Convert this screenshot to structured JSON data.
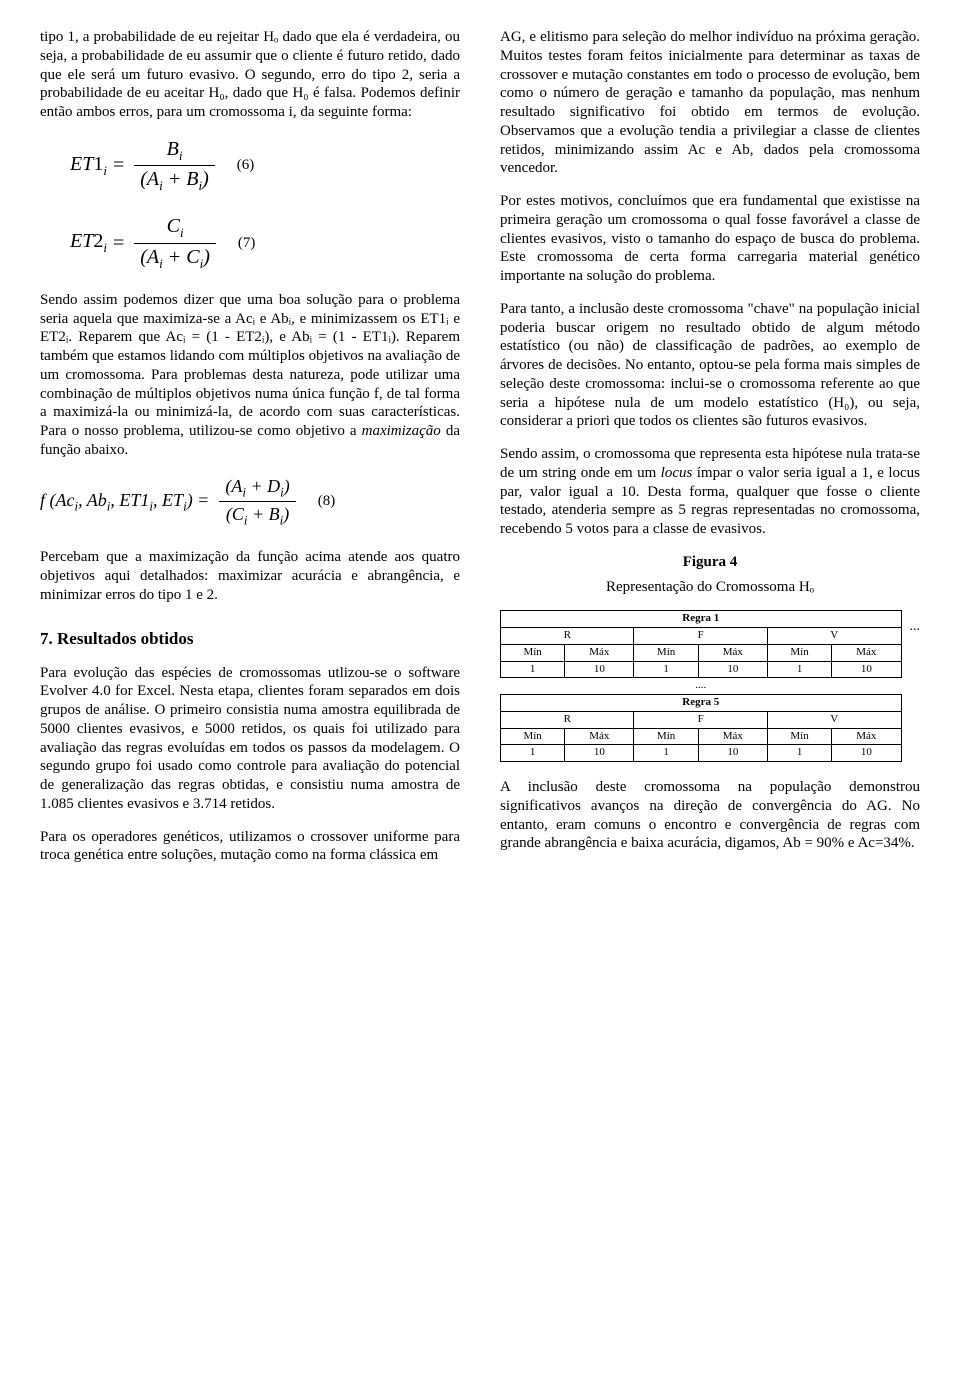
{
  "left": {
    "p1": "tipo 1, a probabilidade de eu rejeitar Hₒ dado que ela é verdadeira, ou seja, a probabilidade de eu assumir que o cliente é futuro retido, dado que ele será um futuro evasivo. O segundo, erro do tipo 2, seria a probabilidade de eu aceitar H₀, dado que H₀ é falsa. Podemos definir então ambos erros, para um cromossoma i, da seguinte forma:",
    "eq6": {
      "lhs_sym": "ET",
      "lhs_num": "1",
      "lhs_sub": "i",
      "num_sym": "B",
      "num_sub": "i",
      "den_a_sym": "A",
      "den_a_sub": "i",
      "den_b_sym": "B",
      "den_b_sub": "i",
      "label": "(6)"
    },
    "eq7": {
      "lhs_sym": "ET",
      "lhs_num": "2",
      "lhs_sub": "i",
      "num_sym": "C",
      "num_sub": "i",
      "den_a_sym": "A",
      "den_a_sub": "i",
      "den_b_sym": "C",
      "den_b_sub": "i",
      "label": "(7)"
    },
    "p2": "Sendo assim podemos dizer que uma boa solução para o problema seria aquela que maximiza-se a Acᵢ e Abᵢ, e minimizassem os ET1ᵢ e ET2ᵢ. Reparem que Acᵢ = (1 - ET2ᵢ), e Abᵢ = (1 - ET1ᵢ). Reparem também que estamos lidando com múltiplos objetivos na avaliação de um cromossoma. Para problemas desta natureza, pode utilizar uma combinação de múltiplos objetivos numa única função f, de tal forma a maximizá-la ou minimizá-la, de acordo com suas características. Para o nosso problema, utilizou-se como objetivo a maximização da função abaixo.",
    "eq8": {
      "lhs_pre": "f (Ac",
      "s1": "i",
      "lhs_m1": ", Ab",
      "s2": "i",
      "lhs_m2": ", ET1",
      "s3": "i",
      "lhs_m3": ", ET",
      "s4": "i",
      "lhs_post": ") =",
      "num_a": "A",
      "num_a_sub": "i",
      "num_b": "D",
      "num_b_sub": "i",
      "den_a": "C",
      "den_a_sub": "i",
      "den_b": "B",
      "den_b_sub": "i",
      "label": "(8)"
    },
    "p3": "Percebam que a maximização da função acima atende aos quatro objetivos aqui detalhados: maximizar acurácia e abrangência, e minimizar erros do tipo 1 e 2.",
    "sec7": "7.  Resultados obtidos",
    "p4": "Para evolução das espécies de cromossomas utlizou-se o software Evolver 4.0 for Excel. Nesta etapa, clientes foram separados em dois grupos de análise. O primeiro consistia numa amostra equilibrada de 5000 clientes evasivos, e 5000 retidos, os quais foi utilizado para avaliação das regras evoluídas em todos os passos da modelagem. O segundo grupo foi usado como controle para avaliação do potencial de generalização das regras obtidas, e consistiu numa amostra de 1.085 clientes evasivos e 3.714 retidos.",
    "p5": "Para os operadores genéticos, utilizamos o crossover uniforme para troca genética entre soluções, mutação como na forma clássica em"
  },
  "right": {
    "p1": "AG, e elitismo para seleção do melhor indivíduo na próxima geração. Muitos testes foram feitos inicialmente para determinar as taxas de crossover e mutação constantes em todo o processo de evolução, bem como o número de geração e tamanho da população, mas nenhum resultado significativo foi obtido em termos de evolução. Observamos que a evolução tendia a privilegiar a classe de clientes retidos, minimizando assim Ac e Ab, dados pela cromossoma vencedor.",
    "p2": "Por estes motivos, concluímos que era fundamental que existisse na primeira geração um cromossoma o qual fosse favorável a classe de clientes evasivos, visto o tamanho do espaço de busca do problema. Este cromossoma de certa forma carregaria material genético importante na solução do problema.",
    "p3": "Para tanto, a inclusão deste cromossoma \"chave\" na população inicial poderia buscar origem no resultado obtido de algum método estatístico (ou não) de classificação de padrões, ao exemplo de árvores de decisões. No entanto, optou-se pela forma mais simples de seleção deste cromossoma: inclui-se o cromossoma referente ao que seria a hipótese nula de um modelo estatístico (H₀), ou seja, considerar a priori que todos os clientes são futuros evasivos.",
    "p4": "Sendo assim, o cromossoma que representa esta hipótese nula trata-se de um string onde em um locus ímpar o valor seria igual a 1, e locus par, valor igual a 10. Desta forma, qualquer que fosse o cliente testado, atenderia sempre as 5 regras representadas no cromossoma, recebendo 5 votos para a classe de evasivos.",
    "fig_title": "Figura 4",
    "fig_caption": "Representação do Cromossoma Hₒ",
    "table": {
      "regra1": "Regra 1",
      "regra5": "Regra 5",
      "R": "R",
      "F": "F",
      "V": "V",
      "min": "Mín",
      "max": "Máx",
      "v1": "1",
      "v10": "10",
      "between": "....",
      "side": "..."
    },
    "p5": "A inclusão deste cromossoma na população demonstrou significativos avanços na direção de convergência do AG. No entanto, eram comuns o encontro e convergência de regras com grande abrangência e baixa acurácia, digamos, Ab = 90% e Ac=34%."
  },
  "italic_word": "maximização",
  "italic_word2": "locus"
}
